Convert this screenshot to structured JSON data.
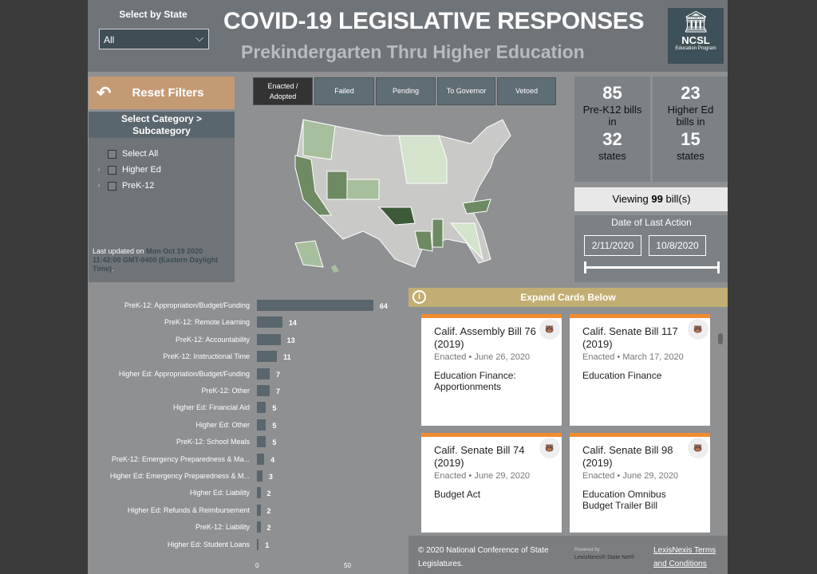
{
  "header": {
    "state_label": "Select by State",
    "state_value": "All",
    "title": "COVID-19 LEGISLATIVE RESPONSES",
    "subtitle": "Prekindergarten Thru Higher Education",
    "logo_text": "NCSL",
    "logo_sub": "Education Program"
  },
  "sidebar": {
    "reset": "Reset Filters",
    "category_title": "Select Category > Subcategory",
    "items": [
      {
        "label": "Select All"
      },
      {
        "label": "Higher Ed"
      },
      {
        "label": "PreK-12"
      }
    ],
    "updated_prefix": "Last updated on",
    "updated_value": "Mon Oct 19 2020 11:42:00 GMT-0400 (Eastern Daylight Time)",
    "updated_suffix": "."
  },
  "tabs": [
    {
      "label": "Enacted / Adopted",
      "active": true
    },
    {
      "label": "Failed"
    },
    {
      "label": "Pending"
    },
    {
      "label": "To Governor"
    },
    {
      "label": "Vetoed"
    }
  ],
  "stats": {
    "prek_bills": "85",
    "prek_label": "Pre-K12 bills in",
    "prek_states": "32",
    "states_label": "states",
    "higher_bills": "23",
    "higher_label": "Higher Ed bills in",
    "higher_states": "15"
  },
  "viewing": {
    "prefix": "Viewing",
    "count": "99",
    "suffix": "bill(s)"
  },
  "date_filter": {
    "title": "Date of Last Action",
    "start": "2/11/2020",
    "end": "10/8/2020"
  },
  "chart_data": {
    "type": "bar",
    "orientation": "horizontal",
    "categories": [
      "PreK-12: Appropriation/Budget/Funding",
      "PreK-12: Remote Learning",
      "PreK-12: Accountability",
      "PreK-12: Instructional Time",
      "Higher Ed: Appropriation/Budget/Funding",
      "PreK-12: Other",
      "Higher Ed: Financial Aid",
      "Higher Ed: Other",
      "PreK-12: School Meals",
      "PreK-12: Emergency Preparedness & Ma...",
      "Higher Ed: Emergency Preparedness & M...",
      "Higher Ed: Liability",
      "Higher Ed: Refunds & Reimbursement",
      "PreK-12: Liability",
      "Higher Ed: Student Loans"
    ],
    "values": [
      64,
      14,
      13,
      11,
      7,
      7,
      5,
      5,
      5,
      4,
      3,
      2,
      2,
      2,
      1
    ],
    "xticks": [
      "0",
      "50"
    ],
    "xlim": [
      0,
      70
    ]
  },
  "expand_label": "Expand Cards Below",
  "cards": [
    {
      "title": "Calif. Assembly Bill 76 (2019)",
      "meta": "Enacted • June 26, 2020",
      "desc": "Education Finance: Apportionments"
    },
    {
      "title": "Calif. Senate Bill 117 (2019)",
      "meta": "Enacted • March 17, 2020",
      "desc": "Education Finance"
    },
    {
      "title": "Calif. Senate Bill 74 (2019)",
      "meta": "Enacted • June 29, 2020",
      "desc": "Budget Act"
    },
    {
      "title": "Calif. Senate Bill 98 (2019)",
      "meta": "Enacted • June 29, 2020",
      "desc": "Education Omnibus Budget Trailer Bill"
    }
  ],
  "footer": {
    "copyright": "© 2020 National Conference of State Legislatures.",
    "powered": "Powered by",
    "brand": "LexisNexis® State Net®",
    "terms": "LexisNexis Terms and Conditions"
  },
  "colors": {
    "accent_reset": "#c49a75",
    "expand_bar": "#c2ae73",
    "card_top": "#f08c2e",
    "map_dark": "#3d5a38",
    "map_light": "#d4e4cc"
  }
}
